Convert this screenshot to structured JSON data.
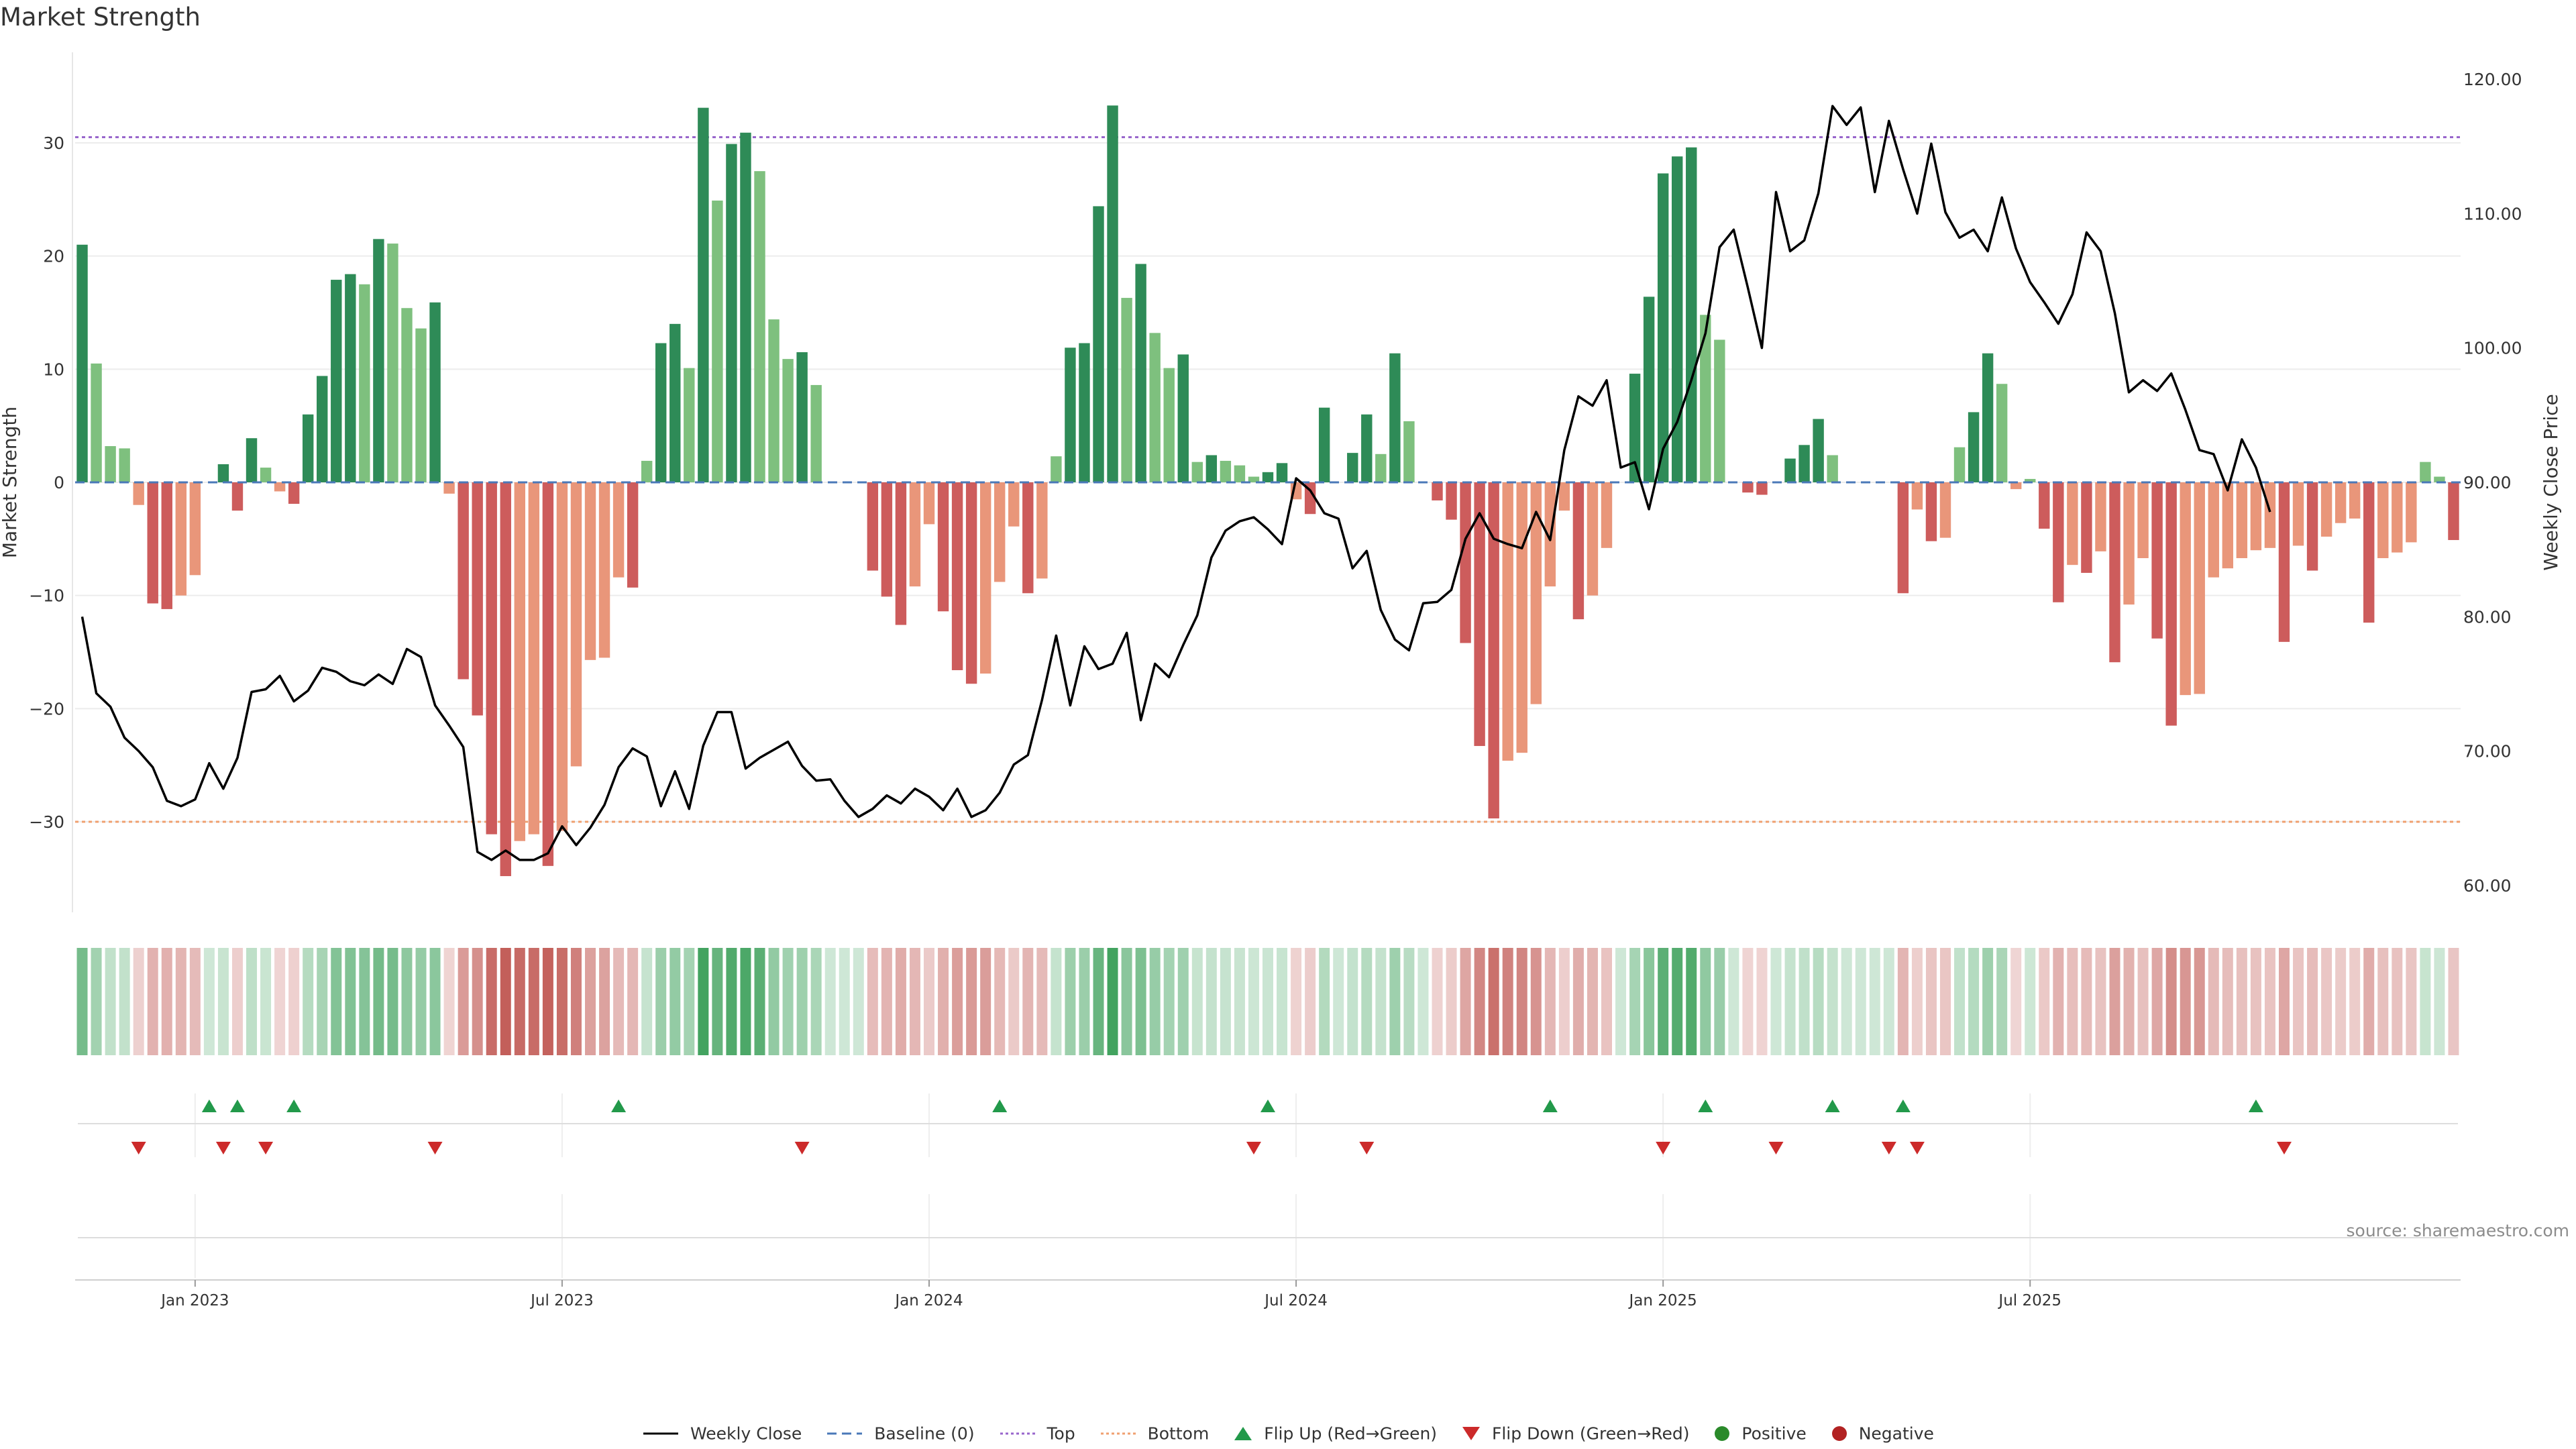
{
  "title": "Market Strength",
  "source": "source: sharemaestro.com",
  "legend": [
    {
      "key": "close",
      "label": "Weekly Close",
      "color": "#000000"
    },
    {
      "key": "baseline",
      "label": "Baseline (0)",
      "color": "#4a78b8"
    },
    {
      "key": "top",
      "label": "Top",
      "color": "#9966cc"
    },
    {
      "key": "bottom",
      "label": "Bottom",
      "color": "#f0a070"
    },
    {
      "key": "flipup",
      "label": "Flip Up (Red→Green)",
      "color": "#22994a"
    },
    {
      "key": "flipdown",
      "label": "Flip Down (Green→Red)",
      "color": "#cc2a2a"
    },
    {
      "key": "positive",
      "label": "Positive",
      "color": "#2a8a2a"
    },
    {
      "key": "negative",
      "label": "Negative",
      "color": "#b22222"
    }
  ],
  "chart_data": {
    "type": "bar+line",
    "title": "Market Strength",
    "ylabel": "Market Strength",
    "y2label": "Weekly Close Price",
    "ylim": [
      -38,
      38
    ],
    "y2lim": [
      58,
      122
    ],
    "yticks": [
      30,
      20,
      10,
      0,
      -10,
      -20,
      -30
    ],
    "ytick_labels": [
      "30",
      "20",
      "10",
      "0",
      "−10",
      "−20",
      "−30"
    ],
    "y2ticks": [
      120,
      110,
      100,
      90,
      80,
      70,
      60
    ],
    "y2tick_labels": [
      "120.00",
      "110.00",
      "100.00",
      "90.00",
      "80.00",
      "70.00",
      "60.00"
    ],
    "xticks": [
      8.5,
      34.5,
      60.5,
      86.5,
      112.5,
      138.5
    ],
    "xtick_labels": [
      "Jan 2023",
      "Jul 2023",
      "Jan 2024",
      "Jul 2024",
      "Jan 2025",
      "Jul 2025"
    ],
    "top_level": 30.5,
    "bottom_level": -30,
    "baseline": 0,
    "colors": {
      "pos_strong": "#2e8b57",
      "pos_weak": "#7ec07e",
      "neg_strong": "#cd5c5c",
      "neg_weak": "#e9967a",
      "top": "#9966cc",
      "bottom": "#f0a070",
      "baseline": "#4a78b8",
      "close": "#000000"
    },
    "strength": [
      21,
      10.5,
      3.2,
      3,
      -2,
      -10.7,
      -11.2,
      -10,
      -8.2,
      0,
      1.6,
      -2.5,
      3.9,
      1.3,
      -0.8,
      -1.9,
      6,
      9.4,
      17.9,
      18.4,
      17.5,
      21.5,
      21.1,
      15.4,
      13.6,
      15.9,
      -1,
      -17.4,
      -20.6,
      -31.1,
      -34.8,
      -31.7,
      -31.1,
      -33.9,
      -30.8,
      -25.1,
      -15.7,
      -15.5,
      -8.4,
      -9.3,
      1.9,
      12.3,
      14,
      10.1,
      33.1,
      24.9,
      29.9,
      30.9,
      27.5,
      14.4,
      10.9,
      11.5,
      8.6,
      0,
      0,
      0,
      -7.8,
      -10.1,
      -12.6,
      -9.2,
      -3.7,
      -11.4,
      -16.6,
      -17.8,
      -16.9,
      -8.8,
      -3.9,
      -9.8,
      -8.5,
      2.3,
      11.9,
      12.3,
      24.4,
      33.3,
      16.3,
      19.3,
      13.2,
      10.1,
      11.3,
      1.8,
      2.4,
      1.9,
      1.5,
      0.5,
      0.9,
      1.7,
      -1.5,
      -2.8,
      6.6,
      0,
      2.6,
      6,
      2.5,
      11.4,
      5.4,
      0,
      -1.6,
      -3.3,
      -14.2,
      -23.3,
      -29.7,
      -24.6,
      -23.9,
      -19.6,
      -9.2,
      -2.5,
      -12.1,
      -10,
      -5.8,
      0,
      9.6,
      16.4,
      27.3,
      28.8,
      29.6,
      14.8,
      12.6,
      0,
      -0.9,
      -1.1,
      0,
      2.1,
      3.3,
      5.6,
      2.4,
      0,
      0,
      0,
      0,
      -9.8,
      -2.4,
      -5.2,
      -4.9,
      3.1,
      6.2,
      11.4,
      8.7,
      -0.6,
      0.3,
      -4.1,
      -10.6,
      -7.3,
      -8,
      -6.1,
      -15.9,
      -10.8,
      -6.7,
      -13.8,
      -21.5,
      -18.8,
      -18.7,
      -8.4,
      -7.6,
      -6.7,
      -6,
      -5.8,
      -14.1,
      -5.6,
      -7.8,
      -4.8,
      -3.6,
      -3.2,
      -12.4,
      -6.7,
      -6.2,
      -5.3,
      1.8,
      0.5,
      -5.1
    ],
    "weekly_close": [
      80,
      74.3,
      73.3,
      71,
      70,
      68.8,
      66.3,
      65.9,
      66.4,
      69.1,
      67.2,
      69.5,
      74.4,
      74.6,
      75.6,
      73.7,
      74.5,
      76.2,
      75.9,
      75.2,
      74.9,
      75.7,
      75,
      77.6,
      77,
      73.4,
      71.9,
      70.3,
      62.5,
      61.9,
      62.6,
      61.9,
      61.9,
      62.4,
      64.4,
      63,
      64.3,
      66,
      68.8,
      70.2,
      69.6,
      65.9,
      68.5,
      65.7,
      70.4,
      72.9,
      72.9,
      68.7,
      69.5,
      70.1,
      70.7,
      68.9,
      67.8,
      67.9,
      66.3,
      65.1,
      65.7,
      66.7,
      66.1,
      67.2,
      66.6,
      65.6,
      67.2,
      65.1,
      65.6,
      66.9,
      69,
      69.7,
      73.8,
      78.6,
      73.4,
      77.8,
      76.1,
      76.5,
      78.8,
      72.3,
      76.5,
      75.5,
      77.9,
      80.1,
      84.4,
      86.4,
      87.1,
      87.4,
      86.5,
      85.4,
      90.3,
      89.4,
      87.7,
      87.3,
      83.6,
      84.9,
      80.5,
      78.3,
      77.5,
      81,
      81.1,
      82,
      85.8,
      87.7,
      85.8,
      85.4,
      85.1,
      87.8,
      85.7,
      92.4,
      96.4,
      95.7,
      97.6,
      91.1,
      91.5,
      88,
      92.5,
      94.5,
      97.6,
      101.1,
      107.5,
      108.8,
      104.5,
      100,
      111.6,
      107.2,
      108,
      111.5,
      118,
      116.6,
      117.9,
      111.6,
      116.9,
      113.3,
      110,
      115.2,
      110.1,
      108.2,
      108.8,
      107.2,
      111.2,
      107.4,
      104.9,
      103.4,
      101.8,
      104,
      108.6,
      107.2,
      102.6,
      96.7,
      97.6,
      96.8,
      98.1,
      95.4,
      92.4,
      92.1,
      89.4,
      93.2,
      91.1,
      87.8
    ],
    "flip_up": [
      9,
      11,
      15,
      38,
      65,
      84,
      104,
      115,
      124,
      129,
      154
    ],
    "flip_down": [
      4,
      10,
      13,
      25,
      51,
      83,
      91,
      112,
      120,
      128,
      130,
      156
    ]
  }
}
